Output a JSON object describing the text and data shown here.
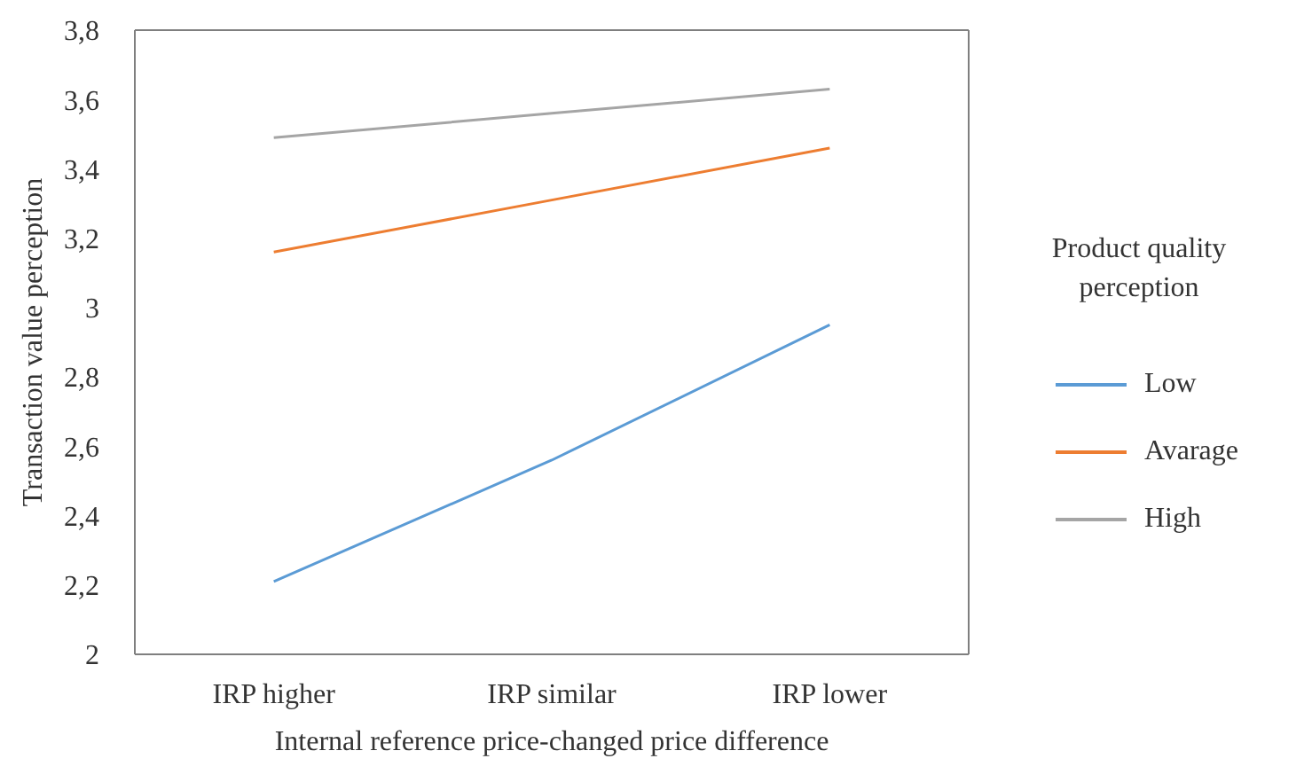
{
  "chart_data": {
    "type": "line",
    "xlabel": "Internal reference price-changed price difference",
    "ylabel": "Transaction value perception",
    "legend_title": "Product quality perception",
    "categories": [
      "IRP higher",
      "IRP similar",
      "IRP lower"
    ],
    "series": [
      {
        "name": "Low",
        "color": "#5b9bd5",
        "values": [
          2.21,
          2.56,
          2.95
        ]
      },
      {
        "name": "Avarage",
        "color": "#ed7d31",
        "values": [
          3.16,
          3.31,
          3.46
        ]
      },
      {
        "name": "High",
        "color": "#a5a5a5",
        "values": [
          3.49,
          3.56,
          3.63
        ]
      }
    ],
    "ylim": [
      2,
      3.8
    ],
    "yticks": [
      2,
      {
        "value": 2.2,
        "label": "2,2"
      },
      {
        "value": 2.4,
        "label": "2,4"
      },
      {
        "value": 2.6,
        "label": "2,6"
      },
      {
        "value": 2.8,
        "label": "2,8"
      },
      3,
      {
        "value": 3.2,
        "label": "3,2"
      },
      {
        "value": 3.4,
        "label": "3,4"
      },
      {
        "value": 3.6,
        "label": "3,6"
      },
      {
        "value": 3.8,
        "label": "3,8"
      }
    ],
    "grid": false,
    "legend": "right",
    "marker": "none",
    "line_style": "solid"
  }
}
